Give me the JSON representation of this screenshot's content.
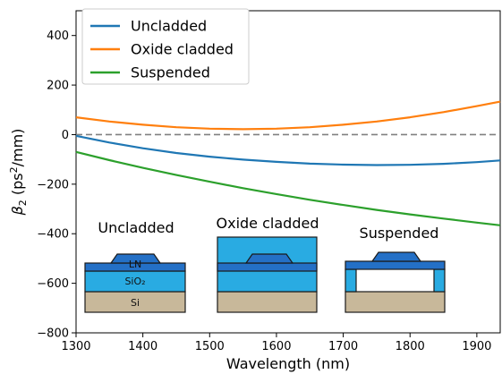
{
  "chart_data": {
    "type": "line",
    "xlabel": "Wavelength (nm)",
    "ylabel_parts": {
      "symbol": "β",
      "sub": "2",
      "unit_pre": " (ps",
      "sup": "2",
      "unit_post": "/mm)"
    },
    "xlim": [
      1300,
      1935
    ],
    "ylim": [
      -800,
      500
    ],
    "x_ticks": [
      1300,
      1400,
      1500,
      1600,
      1700,
      1800,
      1900
    ],
    "y_ticks": [
      -800,
      -600,
      -400,
      -200,
      0,
      200,
      400
    ],
    "grid": false,
    "legend_position": "top-left",
    "reference_line": {
      "y": 0,
      "style": "dashed",
      "color": "#808080"
    },
    "series": [
      {
        "name": "Uncladded",
        "color": "#1f77b4",
        "x": [
          1300,
          1350,
          1400,
          1450,
          1500,
          1550,
          1600,
          1650,
          1700,
          1750,
          1800,
          1850,
          1900,
          1935
        ],
        "y": [
          -5,
          -32,
          -55,
          -74,
          -89,
          -101,
          -110,
          -117,
          -121,
          -123,
          -122,
          -118,
          -111,
          -104
        ]
      },
      {
        "name": "Oxide cladded",
        "color": "#ff7f0e",
        "x": [
          1300,
          1350,
          1400,
          1450,
          1500,
          1550,
          1600,
          1650,
          1700,
          1750,
          1800,
          1850,
          1900,
          1935
        ],
        "y": [
          70,
          53,
          40,
          30,
          24,
          22,
          24,
          30,
          40,
          53,
          70,
          91,
          115,
          133
        ]
      },
      {
        "name": "Suspended",
        "color": "#2ca02c",
        "x": [
          1300,
          1350,
          1400,
          1450,
          1500,
          1550,
          1600,
          1650,
          1700,
          1750,
          1800,
          1850,
          1900,
          1935
        ],
        "y": [
          -70,
          -103,
          -134,
          -163,
          -190,
          -216,
          -240,
          -263,
          -284,
          -304,
          -322,
          -339,
          -355,
          -366
        ]
      }
    ]
  },
  "insets": {
    "uncladded": {
      "title": "Uncladded",
      "layers": {
        "ln": "LN",
        "oxide": "SiO₂",
        "si": "Si"
      }
    },
    "cladded": {
      "title": "Oxide cladded"
    },
    "suspended": {
      "title": "Suspended"
    }
  },
  "colors": {
    "ln": "#2470c6",
    "oxide": "#29abe2",
    "si": "#c8b89a",
    "outline": "#1a1a1a"
  }
}
